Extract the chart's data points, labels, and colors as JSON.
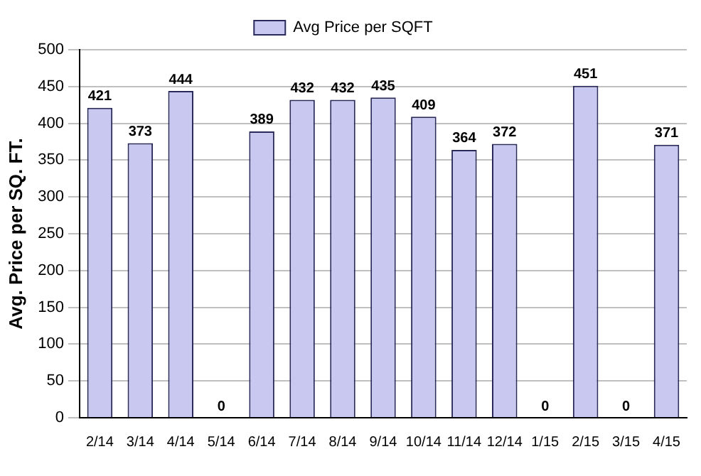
{
  "chart_data": {
    "type": "bar",
    "ylabel": "Avg. Price per SQ. FT.",
    "categories": [
      "2/14",
      "3/14",
      "4/14",
      "5/14",
      "6/14",
      "7/14",
      "8/14",
      "9/14",
      "10/14",
      "11/14",
      "12/14",
      "1/15",
      "2/15",
      "3/15",
      "4/15"
    ],
    "series": [
      {
        "name": "Avg Price per SQFT",
        "color": "#c8c8f0",
        "values": [
          421,
          373,
          444,
          0,
          389,
          432,
          432,
          435,
          409,
          364,
          372,
          0,
          451,
          0,
          371
        ]
      }
    ],
    "ylim": [
      0,
      500
    ],
    "yticks": [
      0,
      50,
      100,
      150,
      200,
      250,
      300,
      350,
      400,
      450,
      500
    ],
    "grid": "y",
    "legend": "top",
    "data_labels": true
  }
}
